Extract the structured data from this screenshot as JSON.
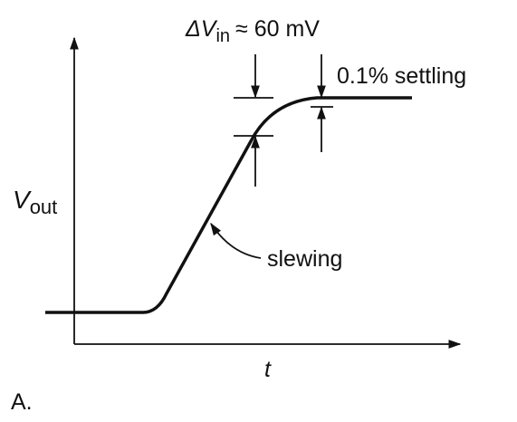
{
  "annotations": {
    "input_step": {
      "symbol": "ΔV",
      "subscript": "in",
      "rest": "≈ 60 mV"
    },
    "settling": "0.1% settling",
    "slewing": "slewing"
  },
  "axes": {
    "y_label": {
      "symbol": "V",
      "subscript": "out"
    },
    "x_label": "t"
  },
  "panel_label": "A."
}
